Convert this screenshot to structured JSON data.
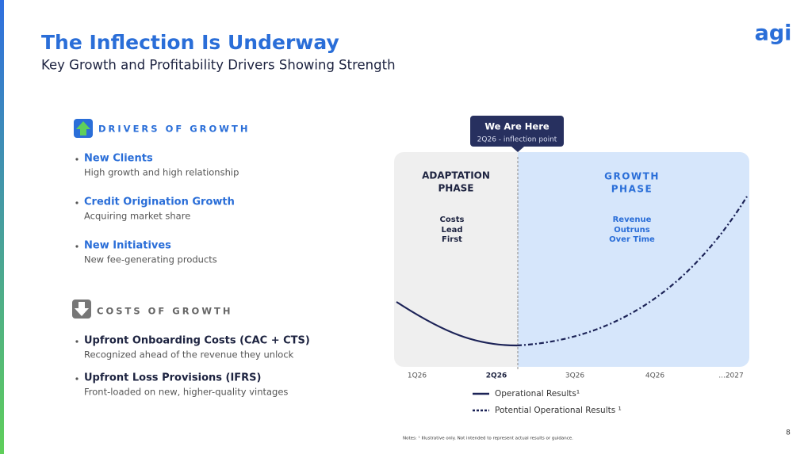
{
  "header": {
    "title": "The Inflection Is Underway",
    "subtitle": "Key Growth and Profitability Drivers Showing Strength",
    "logo": "agi"
  },
  "drivers": {
    "heading": "DRIVERS OF GROWTH",
    "items": [
      {
        "title": "New Clients",
        "desc": "High growth and high relationship"
      },
      {
        "title": "Credit Origination Growth",
        "desc": "Acquiring market share"
      },
      {
        "title": "New Initiatives",
        "desc": "New fee-generating products"
      }
    ]
  },
  "costs": {
    "heading": "COSTS OF GROWTH",
    "items": [
      {
        "title": "Upfront Onboarding Costs (CAC + CTS)",
        "desc": "Recognized ahead of the revenue they unlock"
      },
      {
        "title": "Upfront Loss Provisions (IFRS)",
        "desc": "Front-loaded on new, higher-quality vintages"
      }
    ]
  },
  "callout": {
    "title": "We Are Here",
    "subtitle": "2Q26 - inflection point"
  },
  "phases": {
    "adaptation": {
      "title": [
        "ADAPTATION",
        "PHASE"
      ],
      "note": [
        "Costs",
        "Lead",
        "First"
      ]
    },
    "growth": {
      "title": [
        "GROWTH",
        "PHASE"
      ],
      "note": [
        "Revenue",
        "Outruns",
        "Over Time"
      ]
    }
  },
  "x_labels": [
    "1Q26",
    "2Q26",
    "3Q26",
    "4Q26",
    "...2027"
  ],
  "legend": [
    "Operational Results¹",
    "Potential Operational Results ¹"
  ],
  "footnote": "Notes: ¹ Illustrative only. Not intended to represent actual results or guidance.",
  "page_number": "8"
}
